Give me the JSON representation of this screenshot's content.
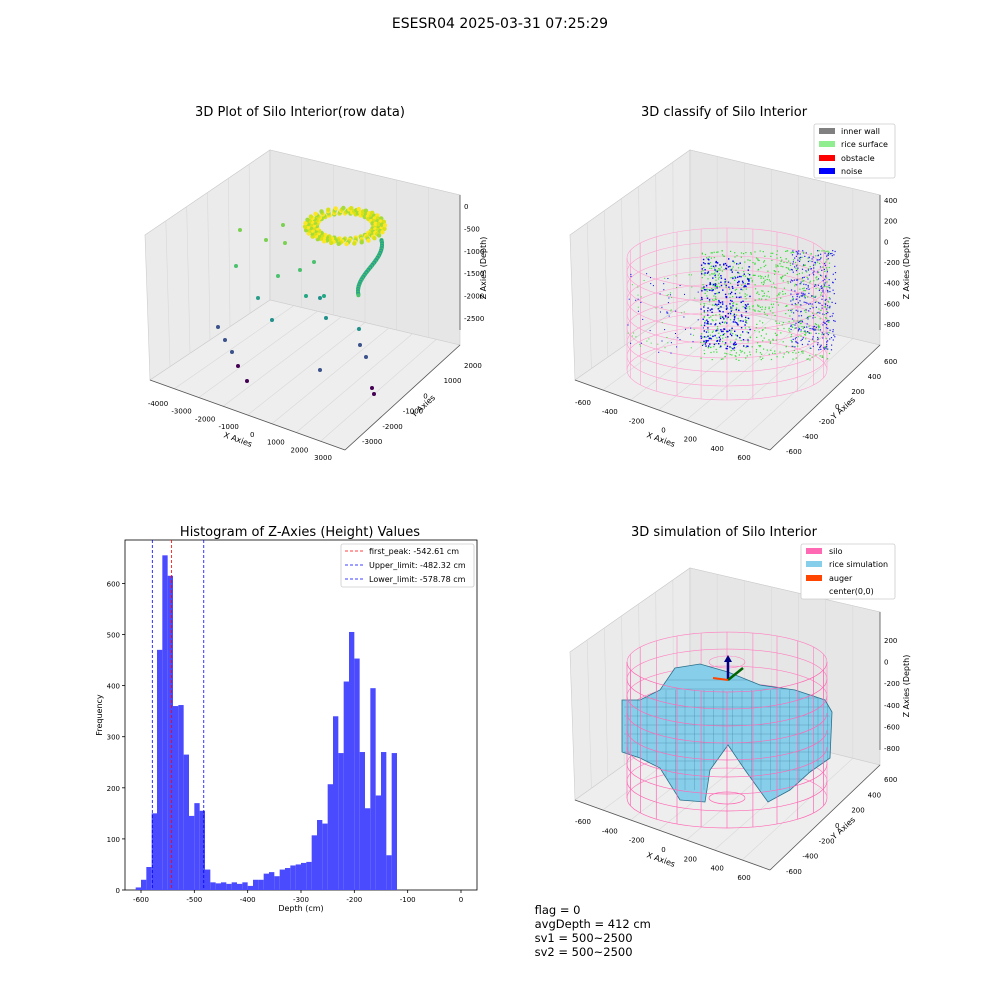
{
  "suptitle": "ESESR04 2025-03-31 07:25:29",
  "footer": {
    "flag": "flag = 0",
    "avg_depth": "avgDepth = 412 cm",
    "sv1": "sv1 = 500~2500",
    "sv2": "sv2 = 500~2500"
  },
  "colors": {
    "hist_bar": "#4a4aff",
    "first_peak": "#ff0000",
    "limits": "#0000ff",
    "inner_wall": "#808080",
    "rice_surface": "#90ee90",
    "obstacle": "#ff0000",
    "noise": "#0000ff",
    "silo": "#ff69b4",
    "rice_simulation": "#87ceeb",
    "auger": "#ff4500"
  },
  "chart_data": [
    {
      "type": "scatter3d",
      "title": "3D Plot of Silo Interior(row data)",
      "xlabel": "X Axies",
      "ylabel": "Y Axies",
      "zlabel": "Z Axies (Depth)",
      "x_ticks": [
        "-4000",
        "-3000",
        "-2000",
        "-1000",
        "0",
        "1000",
        "2000",
        "3000"
      ],
      "y_ticks": [
        "-3000",
        "-2000",
        "-1000",
        "0",
        "1000",
        "2000"
      ],
      "z_ticks": [
        "0",
        "-500",
        "-1000",
        "-1500",
        "-2000",
        "-2500"
      ],
      "colormap": "viridis"
    },
    {
      "type": "scatter3d",
      "title": "3D classify of Silo Interior",
      "xlabel": "X Axies",
      "ylabel": "Y Axies",
      "zlabel": "Z Axies (Depth)",
      "x_ticks": [
        "-600",
        "-400",
        "-200",
        "0",
        "200",
        "400",
        "600"
      ],
      "y_ticks": [
        "-600",
        "-400",
        "-200",
        "0",
        "200",
        "400",
        "600"
      ],
      "z_ticks": [
        "400",
        "200",
        "0",
        "-200",
        "-400",
        "-600",
        "-800"
      ],
      "legend_position": "upper right",
      "legend": [
        "inner wall",
        "rice surface",
        "obstacle",
        "noise"
      ]
    },
    {
      "type": "bar",
      "title": "Histogram of Z-Axies (Height) Values",
      "xlabel": "Depth (cm)",
      "ylabel": "Frequency",
      "xlim": [
        -630,
        30
      ],
      "ylim": [
        0,
        685
      ],
      "x_ticks": [
        -600,
        -500,
        -400,
        -300,
        -200,
        -100,
        0
      ],
      "y_ticks": [
        0,
        100,
        200,
        300,
        400,
        500,
        600
      ],
      "bin_start": -610,
      "bin_width": 10,
      "values": [
        5,
        20,
        45,
        150,
        470,
        655,
        615,
        360,
        362,
        265,
        145,
        170,
        155,
        40,
        15,
        13,
        15,
        12,
        15,
        12,
        15,
        8,
        20,
        20,
        32,
        35,
        27,
        40,
        43,
        48,
        50,
        53,
        55,
        107,
        137,
        130,
        207,
        340,
        268,
        408,
        505,
        453,
        270,
        160,
        395,
        185,
        270,
        68,
        268
      ],
      "lines": [
        {
          "label": "first_peak: -542.61 cm",
          "x": -542.61,
          "color": "#ff0000"
        },
        {
          "label": "Upper_limit: -482.32 cm",
          "x": -482.32,
          "color": "#0000ff"
        },
        {
          "label": "Lower_limit: -578.78 cm",
          "x": -578.78,
          "color": "#0000ff"
        }
      ],
      "legend_position": "upper right"
    },
    {
      "type": "surface3d",
      "title": "3D simulation of Silo Interior",
      "xlabel": "X Axies",
      "ylabel": "Y Axies",
      "zlabel": "Z Axies (Depth)",
      "x_ticks": [
        "-600",
        "-400",
        "-200",
        "0",
        "200",
        "400",
        "600"
      ],
      "y_ticks": [
        "-600",
        "-400",
        "-200",
        "0",
        "200",
        "400",
        "600"
      ],
      "z_ticks": [
        "200",
        "0",
        "-200",
        "-400",
        "-600",
        "-800"
      ],
      "legend_position": "upper right",
      "legend": [
        "silo",
        "rice simulation",
        "auger",
        "center(0,0)"
      ]
    }
  ]
}
